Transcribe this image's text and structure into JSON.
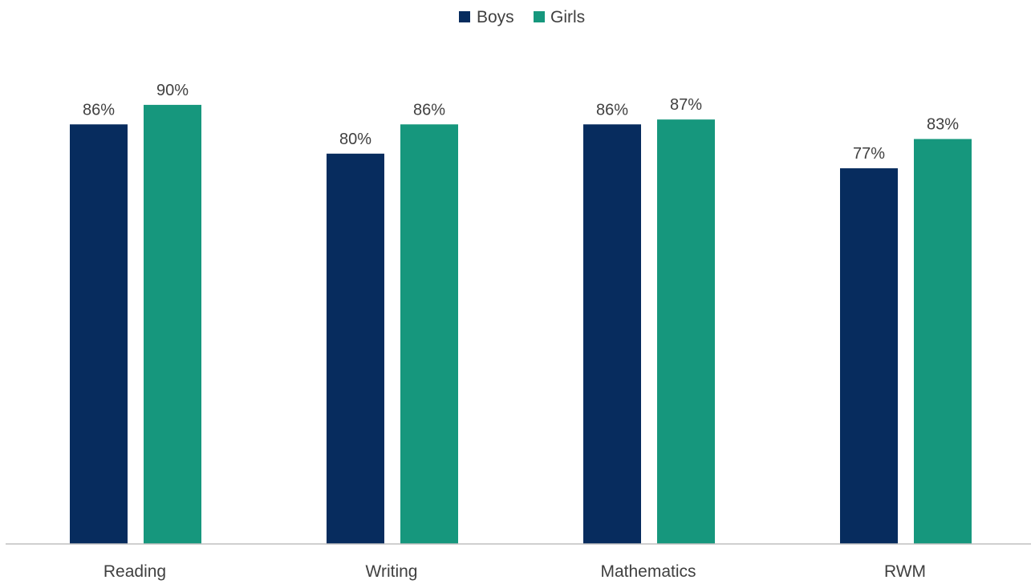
{
  "chart_data": {
    "type": "bar",
    "categories": [
      "Reading",
      "Writing",
      "Mathematics",
      "RWM"
    ],
    "series": [
      {
        "name": "Boys",
        "values": [
          86,
          80,
          86,
          77
        ],
        "labels": [
          "86%",
          "80%",
          "86%",
          "77%"
        ],
        "color": "#072c5e"
      },
      {
        "name": "Girls",
        "values": [
          90,
          86,
          87,
          83
        ],
        "labels": [
          "90%",
          "86%",
          "87%",
          "83%"
        ],
        "color": "#16977d"
      }
    ],
    "title": "",
    "xlabel": "",
    "ylabel": "",
    "ylim": [
      0,
      100
    ],
    "grid": false,
    "legend_position": "top-center",
    "axis_color": "#bfbfbf"
  }
}
